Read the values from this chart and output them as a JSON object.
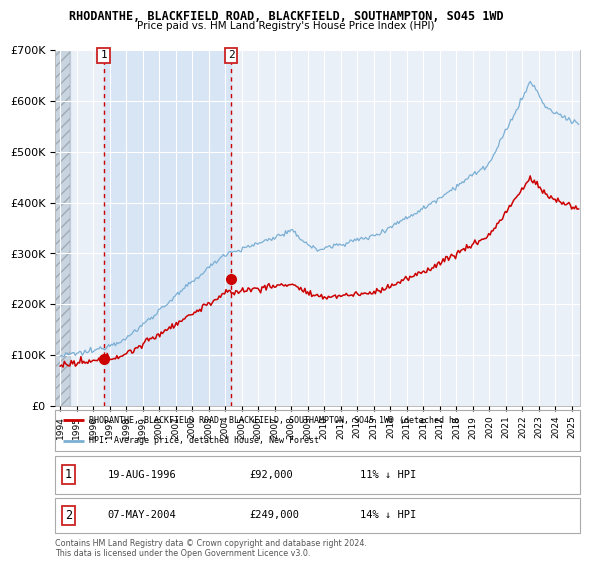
{
  "title": "RHODANTHE, BLACKFIELD ROAD, BLACKFIELD, SOUTHAMPTON, SO45 1WD",
  "subtitle": "Price paid vs. HM Land Registry's House Price Index (HPI)",
  "ylim": [
    0,
    700000
  ],
  "yticks": [
    0,
    100000,
    200000,
    300000,
    400000,
    500000,
    600000,
    700000
  ],
  "ytick_labels": [
    "£0",
    "£100K",
    "£200K",
    "£300K",
    "£400K",
    "£500K",
    "£600K",
    "£700K"
  ],
  "xlim_start": 1993.7,
  "xlim_end": 2025.5,
  "hatch_end": 1994.6,
  "shade_start": 1996.63,
  "shade_end": 2004.35,
  "sale1_x": 1996.63,
  "sale1_y": 92000,
  "sale2_x": 2004.35,
  "sale2_y": 249000,
  "sale1_date": "19-AUG-1996",
  "sale1_price": "£92,000",
  "sale1_hpi": "11% ↓ HPI",
  "sale2_date": "07-MAY-2004",
  "sale2_price": "£249,000",
  "sale2_hpi": "14% ↓ HPI",
  "legend_line1": "RHODANTHE, BLACKFIELD ROAD, BLACKFIELD, SOUTHAMPTON, SO45 1WD (detached ho",
  "legend_line2": "HPI: Average price, detached house, New Forest",
  "footer": "Contains HM Land Registry data © Crown copyright and database right 2024.\nThis data is licensed under the Open Government Licence v3.0.",
  "line_color_red": "#cc0000",
  "line_color_blue": "#7bafd4",
  "bg_plot": "#eaf0f8",
  "bg_shade": "#d5e4f5",
  "bg_hatch_color": "#c8d4e0"
}
